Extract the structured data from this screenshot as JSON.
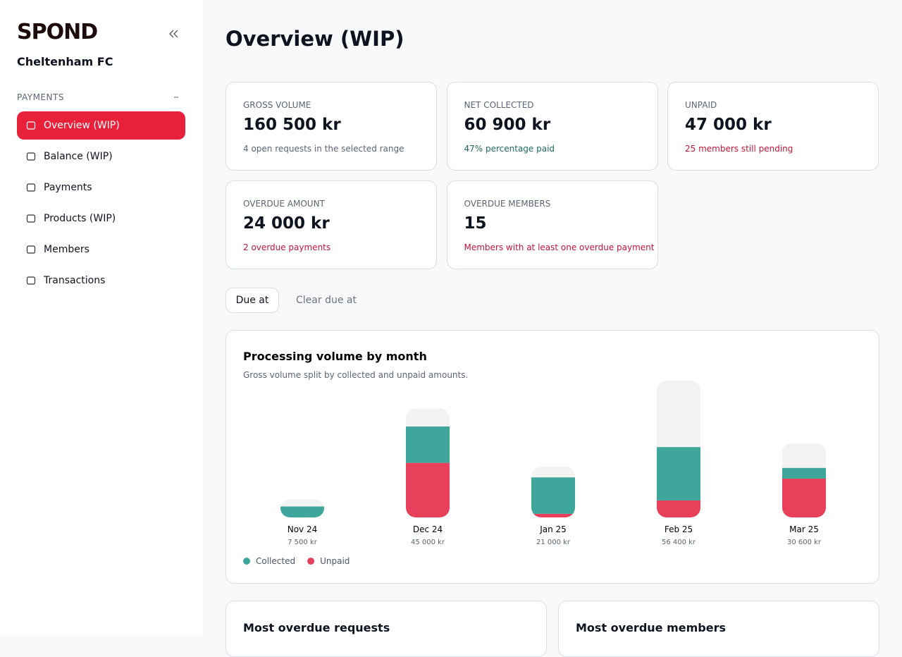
{
  "sidebar": {
    "brand": "SPOND",
    "club": "Cheltenham FC",
    "section": "PAYMENTS",
    "nav": [
      "Overview (WIP)",
      "Balance (WIP)",
      "Payments",
      "Products (WIP)",
      "Members",
      "Transactions"
    ]
  },
  "header": {
    "title": "Overview (WIP)"
  },
  "cards": [
    {
      "label": "GROSS VOLUME",
      "value": "160 500 kr",
      "note": "4 open requests in the selected range"
    },
    {
      "label": "NET COLLECTED",
      "value": "60 900 kr",
      "note": "47% percentage paid"
    },
    {
      "label": "UNPAID",
      "value": "47 000 kr",
      "note": "25 members still pending"
    },
    {
      "label": "OVERDUE AMOUNT",
      "value": "24 000 kr",
      "note": "2 overdue payments"
    },
    {
      "label": "OVERDUE MEMBERS",
      "value": "15",
      "note": "Members with at least one overdue payment"
    }
  ],
  "filters": {
    "due_at": "Due at",
    "clear": "Clear due at"
  },
  "chart_data": {
    "type": "bar",
    "title": "Processing volume by month",
    "subtitle": "Gross volume split by collected and unpaid amounts.",
    "categories": [
      "Nov 24",
      "Dec 24",
      "Jan 25",
      "Feb 25",
      "Mar 25"
    ],
    "totals": {
      "values": [
        7500,
        45000,
        21000,
        56400,
        30600
      ],
      "value_labels": [
        "7 500 kr",
        "45 000 kr",
        "21 000 kr",
        "56 400 kr",
        "30 600 kr"
      ],
      "color": "#f3f3f4"
    },
    "series": [
      {
        "name": "Collected",
        "color": "#3ea69a",
        "values": [
          4500,
          15000,
          15000,
          22000,
          4400
        ]
      },
      {
        "name": "Unpaid",
        "color": "#e8405a",
        "values": [
          0,
          22500,
          1500,
          7000,
          16000
        ]
      }
    ]
  },
  "sections": [
    "Most overdue requests",
    "Most overdue members"
  ]
}
